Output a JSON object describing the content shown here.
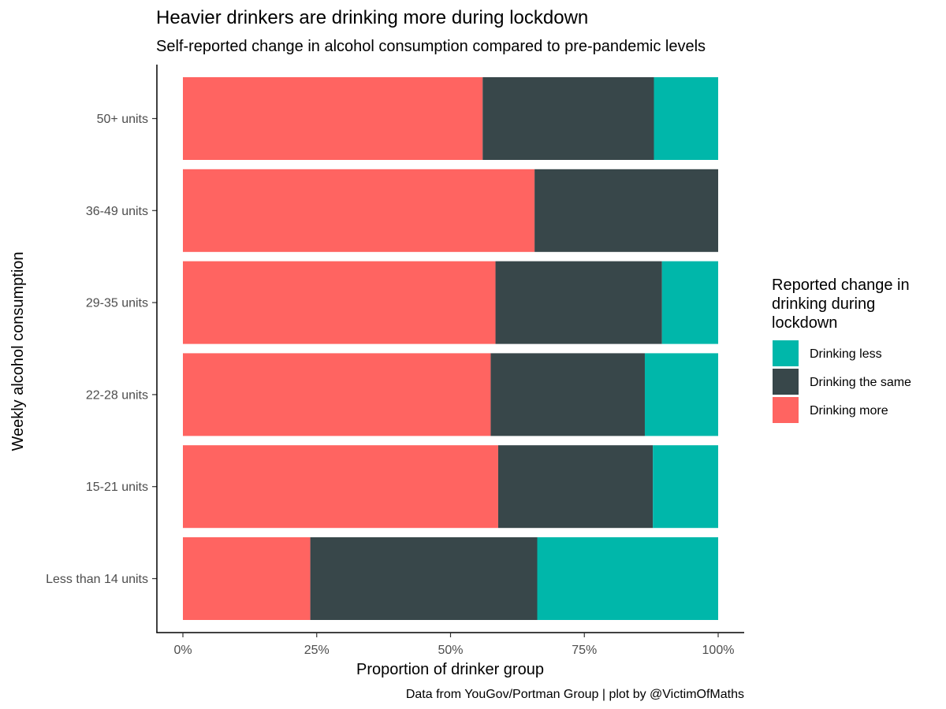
{
  "chart_data": {
    "type": "bar",
    "orientation": "horizontal",
    "stacked": true,
    "title": "Heavier drinkers are drinking more during lockdown",
    "subtitle": "Self-reported change in alcohol consumption compared to pre-pandemic levels",
    "xlabel": "Proportion of drinker group",
    "ylabel": "Weekly alcohol consumption",
    "xlim": [
      0,
      1
    ],
    "x_ticks": [
      "0%",
      "25%",
      "50%",
      "75%",
      "100%"
    ],
    "x_tick_values": [
      0,
      0.25,
      0.5,
      0.75,
      1.0
    ],
    "categories": [
      "50+ units",
      "36-49 units",
      "29-35 units",
      "22-28 units",
      "15-21 units",
      "Less than 14 units"
    ],
    "series": [
      {
        "name": "Drinking more",
        "color": "#FF6461",
        "values": [
          0.56,
          0.657,
          0.584,
          0.575,
          0.589,
          0.238
        ]
      },
      {
        "name": "Drinking the same",
        "color": "#38474A",
        "values": [
          0.32,
          0.343,
          0.311,
          0.288,
          0.289,
          0.424
        ]
      },
      {
        "name": "Drinking less",
        "color": "#00B7AA",
        "values": [
          0.12,
          0.0,
          0.105,
          0.137,
          0.122,
          0.338
        ]
      }
    ],
    "legend": {
      "title": "Reported change in drinking during lockdown",
      "title_lines": [
        "Reported change in",
        "drinking during",
        "lockdown"
      ],
      "order": [
        "Drinking less",
        "Drinking the same",
        "Drinking more"
      ],
      "placement": "right"
    },
    "caption": "Data from YouGov/Portman Group | plot by @VictimOfMaths",
    "grid": false
  }
}
